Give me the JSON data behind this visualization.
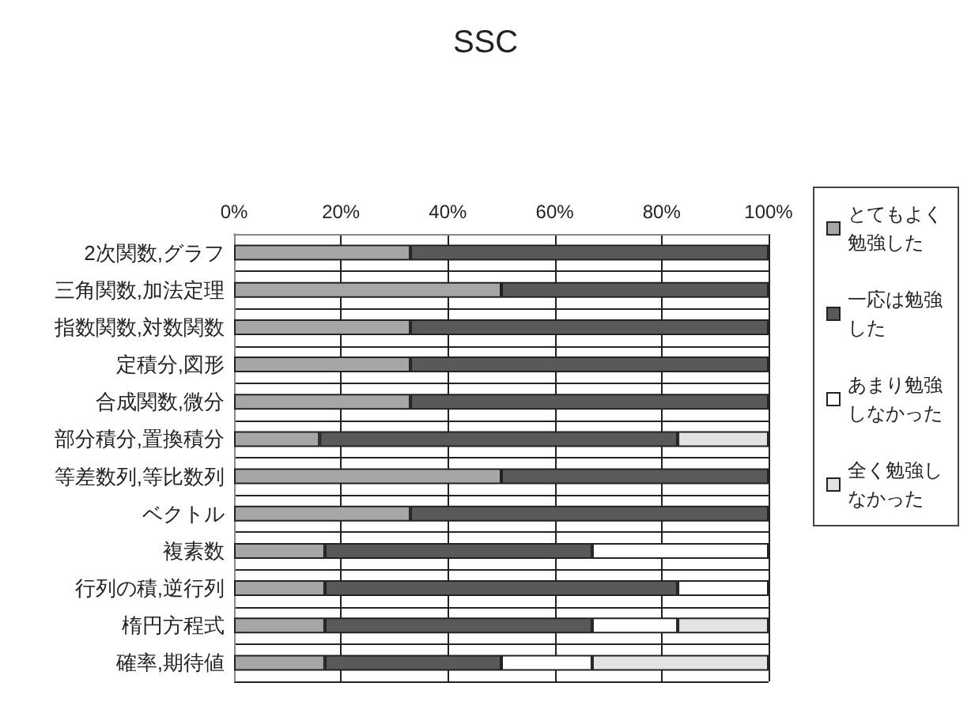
{
  "chart_data": {
    "type": "bar",
    "title": "SSC",
    "orientation": "horizontal",
    "stacked": true,
    "categories": [
      "2次関数,グラフ",
      "三角関数,加法定理",
      "指数関数,対数関数",
      "定積分,図形",
      "合成関数,微分",
      "部分積分,置換積分",
      "等差数列,等比数列",
      "ベクトル",
      "複素数",
      "行列の積,逆行列",
      "楕円方程式",
      "確率,期待値"
    ],
    "series": [
      {
        "name": "とてもよく勉強した",
        "color": "#a6a6a6",
        "values": [
          33,
          50,
          33,
          33,
          33,
          16,
          50,
          33,
          17,
          17,
          17,
          17
        ]
      },
      {
        "name": "一応は勉強した",
        "color": "#595959",
        "values": [
          67,
          50,
          67,
          67,
          67,
          67,
          50,
          67,
          50,
          66,
          50,
          33
        ]
      },
      {
        "name": "あまり勉強しなかった",
        "color": "#ffffff",
        "values": [
          0,
          0,
          0,
          0,
          0,
          0,
          0,
          0,
          33,
          17,
          16,
          17
        ]
      },
      {
        "name": "全く勉強しなかった",
        "color": "#e3e3e3",
        "values": [
          0,
          0,
          0,
          0,
          0,
          17,
          0,
          0,
          0,
          0,
          17,
          33
        ]
      }
    ],
    "xlim": [
      0,
      100
    ],
    "xticks": [
      {
        "value": 0,
        "label": "0%"
      },
      {
        "value": 20,
        "label": "20%"
      },
      {
        "value": 40,
        "label": "40%"
      },
      {
        "value": 60,
        "label": "60%"
      },
      {
        "value": 80,
        "label": "80%"
      },
      {
        "value": 100,
        "label": "100%"
      }
    ],
    "grid": true,
    "legend": "right"
  }
}
